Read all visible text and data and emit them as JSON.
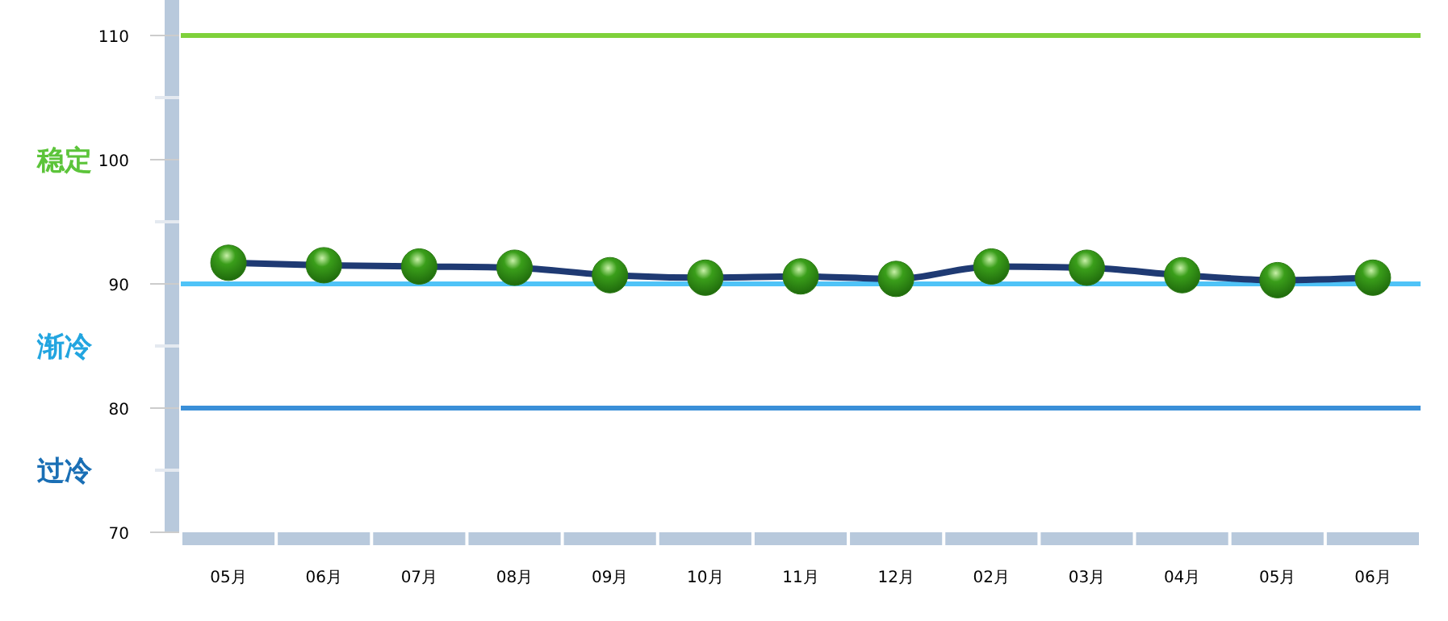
{
  "chart_data": {
    "type": "line",
    "categories": [
      "05月",
      "06月",
      "07月",
      "08月",
      "09月",
      "10月",
      "11月",
      "12月",
      "02月",
      "03月",
      "04月",
      "05月",
      "06月"
    ],
    "series": [
      {
        "color": "#1f3a73",
        "values": [
          91.7,
          91.5,
          91.4,
          91.3,
          90.7,
          90.5,
          90.6,
          90.4,
          91.4,
          91.3,
          90.7,
          90.3,
          90.5
        ]
      }
    ],
    "marker": "circle",
    "ylim": [
      70,
      110
    ],
    "yticks": [
      70,
      {
        "value": 75,
        "label": null
      },
      80,
      {
        "value": 85,
        "label": null
      },
      90,
      {
        "value": 95,
        "label": null
      },
      100,
      {
        "value": 105,
        "label": null
      },
      110
    ],
    "grid": false,
    "ref_lines": [
      {
        "axis": "y",
        "value": 110,
        "color": "#7fd13b"
      },
      {
        "axis": "y",
        "value": 90,
        "color": "#4fc3f7"
      },
      {
        "axis": "y",
        "value": 80,
        "color": "#3a8fd8"
      }
    ],
    "annotations": [
      "稳定",
      "渐冷",
      "过冷"
    ]
  }
}
